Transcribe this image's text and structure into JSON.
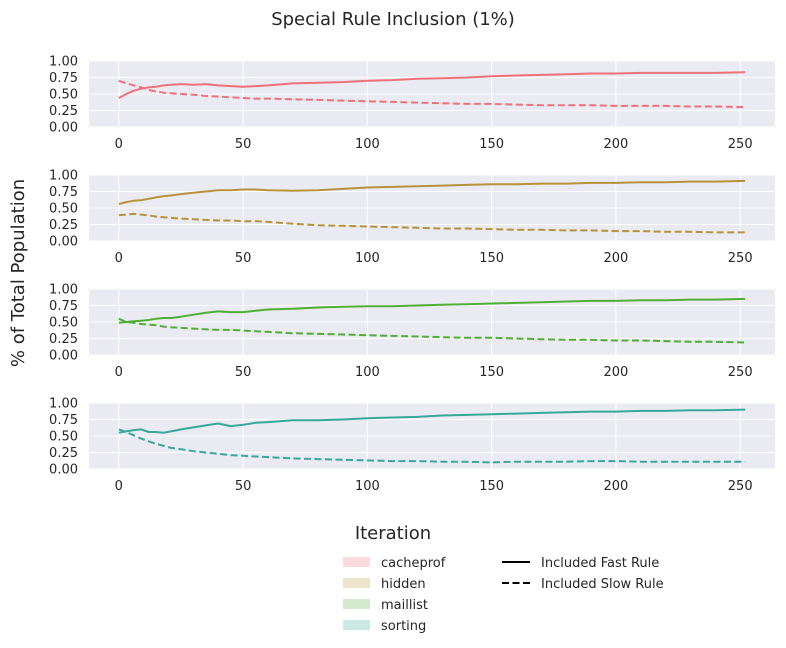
{
  "chart_data": {
    "type": "line",
    "title": "Special Rule Inclusion (1%)",
    "xlabel": "Iteration",
    "ylabel": "% of Total Population",
    "xlim": [
      -12,
      264
    ],
    "ylim": [
      0,
      1
    ],
    "xticks": [
      0,
      50,
      100,
      150,
      200,
      250
    ],
    "yticks": [
      "0.00",
      "0.25",
      "0.50",
      "0.75",
      "1.00"
    ],
    "grid": true,
    "legend_placement": "bottom-center",
    "legend_items": [
      {
        "label": "cacheprof",
        "color": "#f0707a"
      },
      {
        "label": "hidden",
        "color": "#b8923a"
      },
      {
        "label": "maillist",
        "color": "#4fae34"
      },
      {
        "label": "sorting",
        "color": "#36a89a"
      }
    ],
    "line_styles": [
      {
        "label": "Included Fast Rule",
        "style": "solid"
      },
      {
        "label": "Included Slow Rule",
        "style": "dashed"
      }
    ],
    "panels": [
      {
        "name": "cacheprof",
        "color": "#f0707a",
        "series": [
          {
            "style": "solid",
            "x": [
              0,
              3,
              6,
              9,
              12,
              15,
              18,
              21,
              25,
              30,
              35,
              40,
              45,
              50,
              55,
              60,
              70,
              80,
              90,
              100,
              110,
              120,
              130,
              140,
              150,
              160,
              170,
              180,
              190,
              200,
              210,
              220,
              230,
              240,
              252
            ],
            "y": [
              0.44,
              0.5,
              0.55,
              0.58,
              0.6,
              0.61,
              0.63,
              0.64,
              0.65,
              0.64,
              0.65,
              0.63,
              0.62,
              0.61,
              0.62,
              0.63,
              0.66,
              0.67,
              0.68,
              0.7,
              0.71,
              0.73,
              0.74,
              0.75,
              0.77,
              0.78,
              0.79,
              0.8,
              0.81,
              0.81,
              0.82,
              0.82,
              0.82,
              0.82,
              0.83
            ]
          },
          {
            "style": "dashed",
            "x": [
              0,
              3,
              6,
              9,
              12,
              15,
              18,
              21,
              25,
              30,
              35,
              40,
              45,
              50,
              55,
              60,
              70,
              80,
              90,
              100,
              110,
              120,
              130,
              140,
              150,
              160,
              170,
              180,
              190,
              200,
              210,
              220,
              230,
              240,
              252
            ],
            "y": [
              0.7,
              0.66,
              0.63,
              0.6,
              0.56,
              0.54,
              0.52,
              0.51,
              0.5,
              0.49,
              0.47,
              0.46,
              0.45,
              0.44,
              0.43,
              0.43,
              0.42,
              0.41,
              0.4,
              0.39,
              0.38,
              0.37,
              0.36,
              0.35,
              0.35,
              0.34,
              0.33,
              0.33,
              0.33,
              0.32,
              0.32,
              0.32,
              0.31,
              0.31,
              0.3
            ]
          }
        ]
      },
      {
        "name": "hidden",
        "color": "#b8923a",
        "series": [
          {
            "style": "solid",
            "x": [
              0,
              3,
              6,
              9,
              12,
              15,
              18,
              21,
              25,
              30,
              35,
              40,
              45,
              50,
              55,
              60,
              70,
              80,
              90,
              100,
              110,
              120,
              130,
              140,
              150,
              160,
              170,
              180,
              190,
              200,
              210,
              220,
              230,
              240,
              252
            ],
            "y": [
              0.56,
              0.59,
              0.61,
              0.62,
              0.64,
              0.66,
              0.68,
              0.69,
              0.71,
              0.73,
              0.75,
              0.77,
              0.77,
              0.78,
              0.78,
              0.77,
              0.76,
              0.77,
              0.79,
              0.81,
              0.82,
              0.83,
              0.84,
              0.85,
              0.86,
              0.86,
              0.87,
              0.87,
              0.88,
              0.88,
              0.89,
              0.89,
              0.9,
              0.9,
              0.91
            ]
          },
          {
            "style": "dashed",
            "x": [
              0,
              3,
              6,
              9,
              12,
              15,
              18,
              21,
              25,
              30,
              35,
              40,
              45,
              50,
              55,
              60,
              70,
              80,
              90,
              100,
              110,
              120,
              130,
              140,
              150,
              160,
              170,
              180,
              190,
              200,
              210,
              220,
              230,
              240,
              252
            ],
            "y": [
              0.39,
              0.4,
              0.41,
              0.4,
              0.39,
              0.37,
              0.36,
              0.35,
              0.34,
              0.33,
              0.32,
              0.31,
              0.31,
              0.3,
              0.3,
              0.29,
              0.26,
              0.24,
              0.23,
              0.22,
              0.21,
              0.2,
              0.19,
              0.19,
              0.18,
              0.17,
              0.17,
              0.16,
              0.16,
              0.15,
              0.15,
              0.14,
              0.14,
              0.13,
              0.13
            ]
          }
        ]
      },
      {
        "name": "maillist",
        "color": "#4fae34",
        "series": [
          {
            "style": "solid",
            "x": [
              0,
              3,
              6,
              9,
              12,
              15,
              18,
              21,
              25,
              30,
              35,
              40,
              45,
              50,
              55,
              60,
              70,
              80,
              90,
              100,
              110,
              120,
              130,
              140,
              150,
              160,
              170,
              180,
              190,
              200,
              210,
              220,
              230,
              240,
              252
            ],
            "y": [
              0.49,
              0.5,
              0.51,
              0.52,
              0.53,
              0.55,
              0.56,
              0.56,
              0.58,
              0.61,
              0.64,
              0.66,
              0.65,
              0.65,
              0.67,
              0.69,
              0.7,
              0.72,
              0.73,
              0.74,
              0.74,
              0.75,
              0.76,
              0.77,
              0.78,
              0.79,
              0.8,
              0.81,
              0.82,
              0.82,
              0.83,
              0.83,
              0.84,
              0.84,
              0.85
            ]
          },
          {
            "style": "dashed",
            "x": [
              0,
              3,
              6,
              9,
              12,
              15,
              18,
              21,
              25,
              30,
              35,
              40,
              45,
              50,
              55,
              60,
              70,
              80,
              90,
              100,
              110,
              120,
              130,
              140,
              150,
              160,
              170,
              180,
              190,
              200,
              210,
              220,
              230,
              240,
              252
            ],
            "y": [
              0.55,
              0.5,
              0.49,
              0.47,
              0.46,
              0.45,
              0.43,
              0.42,
              0.41,
              0.4,
              0.39,
              0.38,
              0.38,
              0.37,
              0.36,
              0.35,
              0.33,
              0.32,
              0.31,
              0.3,
              0.29,
              0.28,
              0.27,
              0.26,
              0.26,
              0.25,
              0.24,
              0.23,
              0.23,
              0.22,
              0.22,
              0.21,
              0.2,
              0.2,
              0.19
            ]
          }
        ]
      },
      {
        "name": "sorting",
        "color": "#36a89a",
        "series": [
          {
            "style": "solid",
            "x": [
              0,
              3,
              6,
              9,
              12,
              15,
              18,
              21,
              25,
              30,
              35,
              40,
              45,
              50,
              55,
              60,
              70,
              80,
              90,
              100,
              110,
              120,
              130,
              140,
              150,
              160,
              170,
              180,
              190,
              200,
              210,
              220,
              230,
              240,
              252
            ],
            "y": [
              0.55,
              0.57,
              0.59,
              0.6,
              0.56,
              0.56,
              0.55,
              0.57,
              0.6,
              0.63,
              0.66,
              0.69,
              0.65,
              0.67,
              0.7,
              0.71,
              0.74,
              0.74,
              0.75,
              0.77,
              0.78,
              0.79,
              0.81,
              0.82,
              0.83,
              0.84,
              0.85,
              0.86,
              0.87,
              0.87,
              0.88,
              0.88,
              0.89,
              0.89,
              0.9
            ]
          },
          {
            "style": "dashed",
            "x": [
              0,
              3,
              6,
              9,
              12,
              15,
              18,
              21,
              25,
              30,
              35,
              40,
              45,
              50,
              55,
              60,
              70,
              80,
              90,
              100,
              110,
              120,
              130,
              140,
              150,
              160,
              170,
              180,
              190,
              200,
              210,
              220,
              230,
              240,
              252
            ],
            "y": [
              0.6,
              0.56,
              0.51,
              0.46,
              0.42,
              0.38,
              0.35,
              0.32,
              0.3,
              0.27,
              0.25,
              0.23,
              0.21,
              0.2,
              0.19,
              0.18,
              0.16,
              0.15,
              0.14,
              0.13,
              0.12,
              0.12,
              0.11,
              0.11,
              0.1,
              0.11,
              0.11,
              0.11,
              0.12,
              0.12,
              0.11,
              0.11,
              0.11,
              0.11,
              0.11
            ]
          }
        ]
      }
    ]
  }
}
